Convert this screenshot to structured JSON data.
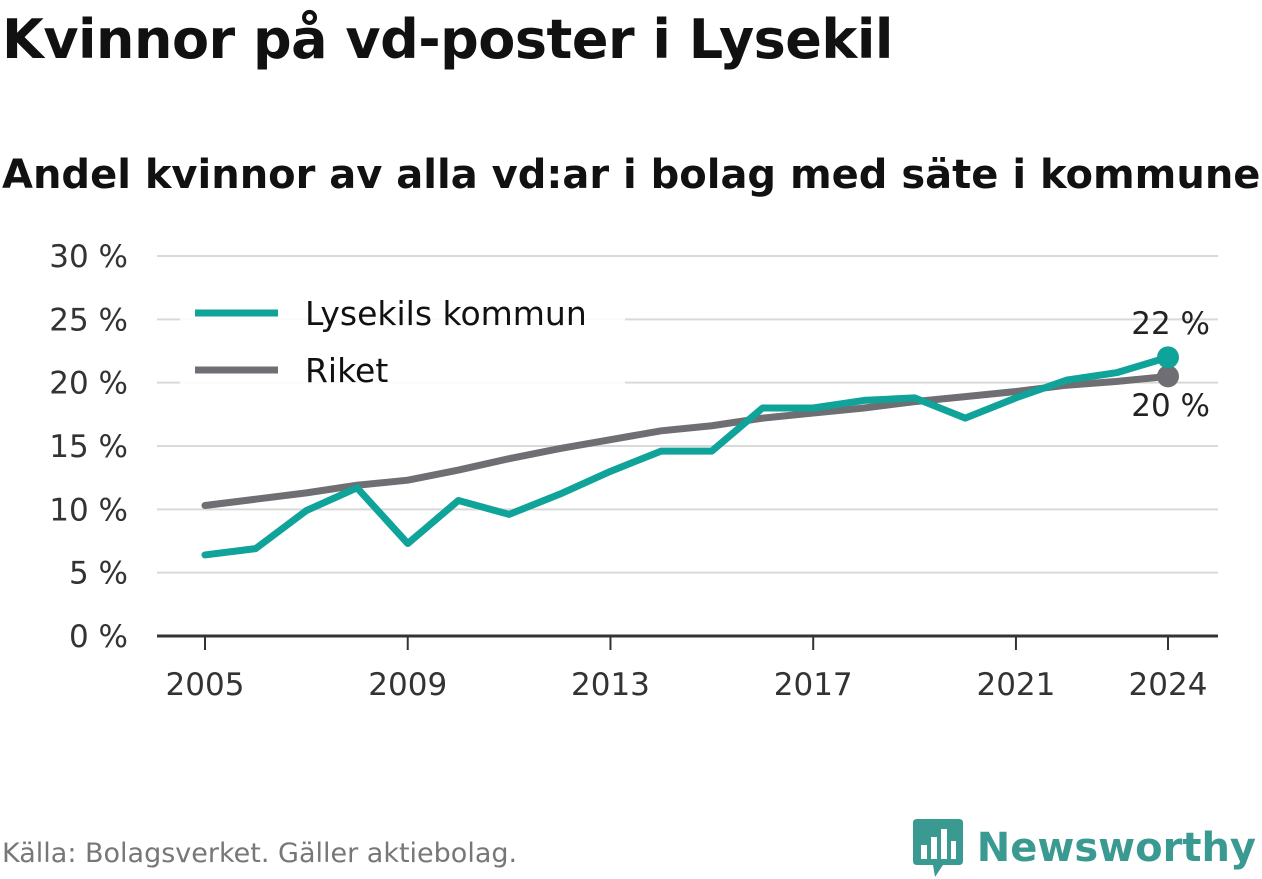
{
  "header": {
    "title": "Kvinnor på vd-poster i Lysekil",
    "subtitle": "Andel kvinnor av alla vd:ar i bolag med säte i kommunen"
  },
  "footer": {
    "source": "Källa: Bolagsverket. Gäller aktiebolag.",
    "brand": "Newsworthy",
    "brand_icon": "newsworthy-logo-icon"
  },
  "colors": {
    "lysekil": "#0fa39a",
    "riket": "#6f6e73",
    "grid": "#d9d9d9",
    "axis": "#333333",
    "brand": "#3a9a92"
  },
  "chart_data": {
    "type": "line",
    "title": "Kvinnor på vd-poster i Lysekil",
    "subtitle": "Andel kvinnor av alla vd:ar i bolag med säte i kommunen",
    "x": [
      2005,
      2006,
      2007,
      2008,
      2009,
      2010,
      2011,
      2012,
      2013,
      2014,
      2015,
      2016,
      2017,
      2018,
      2019,
      2020,
      2021,
      2022,
      2023,
      2024
    ],
    "xticks": [
      2005,
      2009,
      2013,
      2017,
      2021,
      2024
    ],
    "xlim": [
      2004,
      2025
    ],
    "yticks": [
      0,
      5,
      10,
      15,
      20,
      25,
      30
    ],
    "ytick_labels": [
      "0 %",
      "5 %",
      "10 %",
      "15 %",
      "20 %",
      "25 %",
      "30 %"
    ],
    "ylim": [
      0,
      30
    ],
    "grid": true,
    "legend_position": "top-left",
    "series": [
      {
        "name": "Lysekils kommun",
        "color": "#0fa39a",
        "values": [
          6.4,
          6.9,
          9.9,
          11.7,
          7.3,
          10.7,
          9.6,
          11.2,
          13.0,
          14.6,
          14.6,
          18.0,
          18.0,
          18.6,
          18.8,
          17.2,
          18.8,
          20.2,
          20.8,
          22.0
        ],
        "end_label": "22 %"
      },
      {
        "name": "Riket",
        "color": "#6f6e73",
        "values": [
          10.3,
          10.8,
          11.3,
          11.9,
          12.3,
          13.1,
          14.0,
          14.8,
          15.5,
          16.2,
          16.6,
          17.2,
          17.6,
          18.0,
          18.5,
          18.9,
          19.3,
          19.8,
          20.1,
          20.5
        ],
        "end_label": "20 %"
      }
    ]
  }
}
